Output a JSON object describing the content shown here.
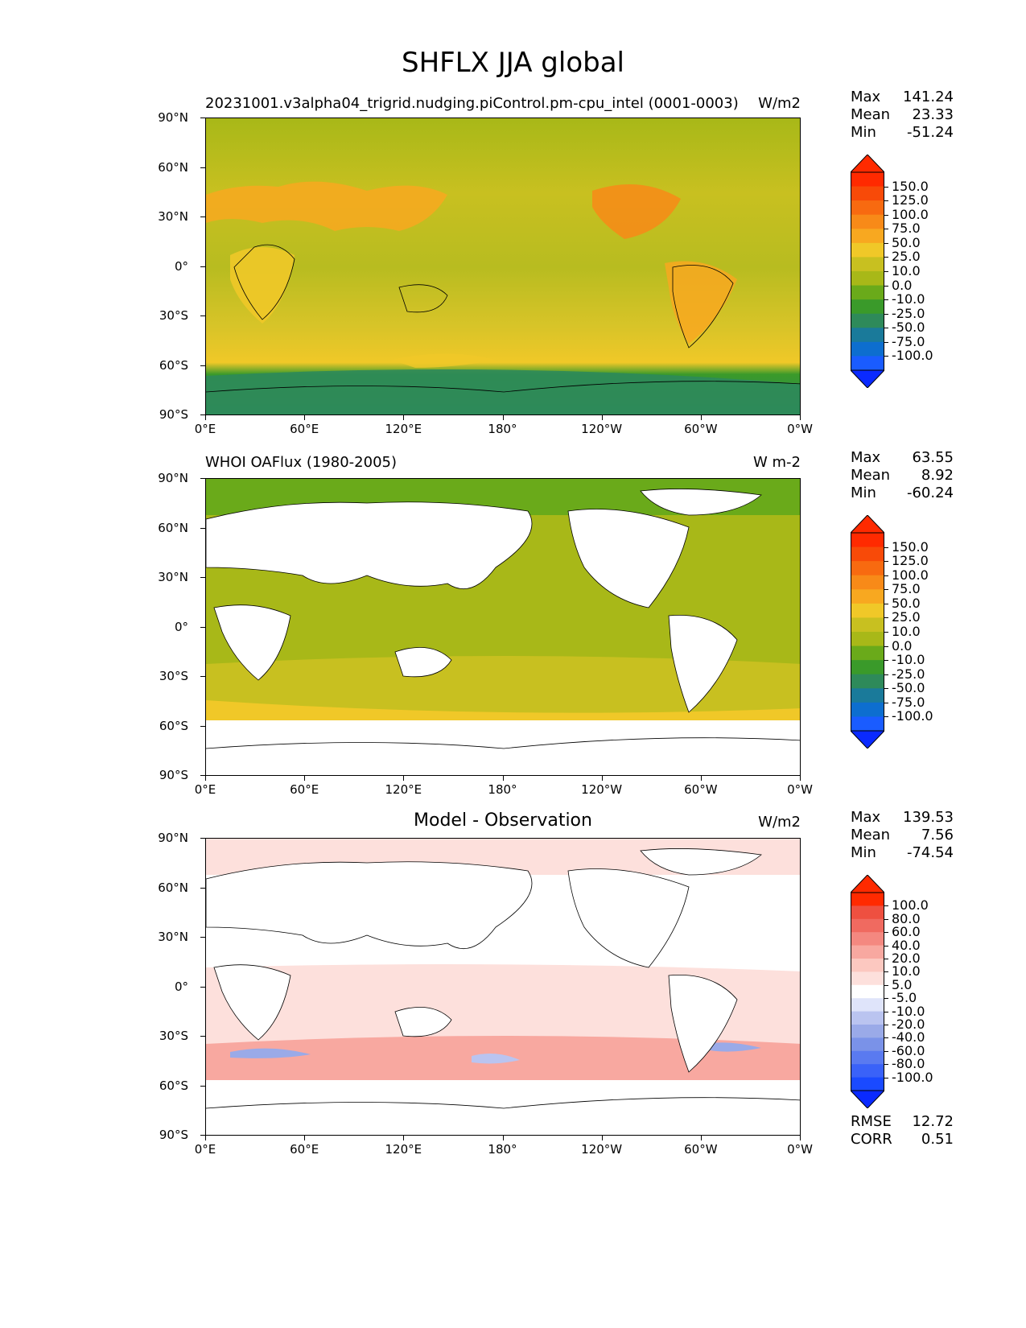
{
  "figure_title": "SHFLX JJA global",
  "x_ticks": [
    "0°E",
    "60°E",
    "120°E",
    "180°",
    "120°W",
    "60°W",
    "0°W"
  ],
  "y_ticks": [
    "90°N",
    "60°N",
    "30°N",
    "0°",
    "30°S",
    "60°S",
    "90°S"
  ],
  "panels": [
    {
      "id": "model",
      "title_left": "20231001.v3alpha04_trigrid.nudging.piControl.pm-cpu_intel (0001-0003)",
      "title_center": "",
      "units": "W/m2",
      "stats": {
        "max_label": "Max",
        "max": "141.24",
        "mean_label": "Mean",
        "mean": "23.33",
        "min_label": "Min",
        "min": "-51.24"
      },
      "colorbar": {
        "levels": [
          "-100.0",
          "-75.0",
          "-50.0",
          "-25.0",
          "-10.0",
          "0.0",
          "10.0",
          "25.0",
          "50.0",
          "75.0",
          "100.0",
          "125.0",
          "150.0"
        ],
        "colors": [
          "#1a5cff",
          "#0d6ecf",
          "#1a7a9a",
          "#2e8a5a",
          "#3a9a2a",
          "#6aaa1a",
          "#a8b818",
          "#c8c020",
          "#f0c828",
          "#f8a820",
          "#f88a18",
          "#f86a10",
          "#f84a08",
          "#ff2a00"
        ],
        "under_color": "#0a2aff",
        "over_color": "#ff2a00"
      }
    },
    {
      "id": "obs",
      "title_left": "WHOI OAFlux (1980-2005)",
      "title_center": "",
      "units": "W m-2",
      "stats": {
        "max_label": "Max",
        "max": "63.55",
        "mean_label": "Mean",
        "mean": "8.92",
        "min_label": "Min",
        "min": "-60.24"
      },
      "colorbar": {
        "levels": [
          "-100.0",
          "-75.0",
          "-50.0",
          "-25.0",
          "-10.0",
          "0.0",
          "10.0",
          "25.0",
          "50.0",
          "75.0",
          "100.0",
          "125.0",
          "150.0"
        ],
        "colors": [
          "#1a5cff",
          "#0d6ecf",
          "#1a7a9a",
          "#2e8a5a",
          "#3a9a2a",
          "#6aaa1a",
          "#a8b818",
          "#c8c020",
          "#f0c828",
          "#f8a820",
          "#f88a18",
          "#f86a10",
          "#f84a08",
          "#ff2a00"
        ],
        "under_color": "#0a2aff",
        "over_color": "#ff2a00"
      }
    },
    {
      "id": "diff",
      "title_left": "",
      "title_center": "Model - Observation",
      "units": "W/m2",
      "stats": {
        "max_label": "Max",
        "max": "139.53",
        "mean_label": "Mean",
        "mean": "7.56",
        "min_label": "Min",
        "min": "-74.54"
      },
      "colorbar": {
        "levels": [
          "-100.0",
          "-80.0",
          "-60.0",
          "-40.0",
          "-20.0",
          "-10.0",
          "-5.0",
          "5.0",
          "10.0",
          "20.0",
          "40.0",
          "60.0",
          "80.0",
          "100.0"
        ],
        "colors": [
          "#1a4aff",
          "#3a62f8",
          "#5a7af0",
          "#7a92e8",
          "#9aaae8",
          "#bac4f0",
          "#dfe4fa",
          "#ffffff",
          "#fde0dc",
          "#fcc8c0",
          "#f8a8a0",
          "#f48880",
          "#f06a60",
          "#ee5040",
          "#ff2a00"
        ],
        "under_color": "#0a2aff",
        "over_color": "#ff2a00"
      },
      "metrics": {
        "rmse_label": "RMSE",
        "rmse": "12.72",
        "corr_label": "CORR",
        "corr": "0.51"
      }
    }
  ]
}
